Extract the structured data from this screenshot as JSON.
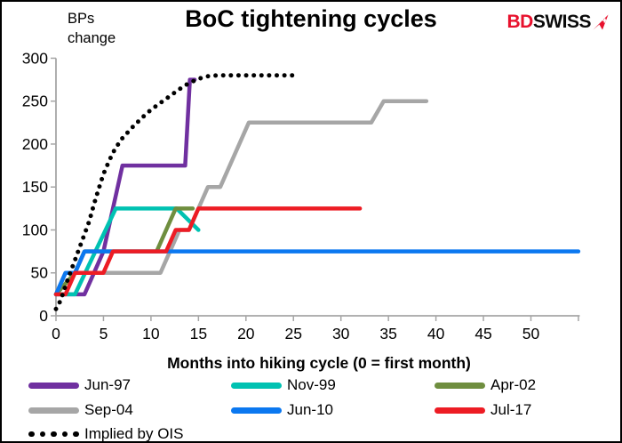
{
  "header": {
    "ylabel_note": "BPs change",
    "title": "BoC tightening cycles",
    "logo": {
      "bd": "BD",
      "swiss": "SWISS"
    }
  },
  "chart_data": {
    "type": "line",
    "title": "BoC tightening cycles",
    "xlabel": "Months into hiking cycle (0 = first month)",
    "ylabel": "BPs change",
    "xlim": [
      0,
      55
    ],
    "ylim": [
      0,
      300
    ],
    "grid": false,
    "legend_position": "bottom",
    "axis_color": "#a6a6a6",
    "x_ticks": [
      0,
      5,
      10,
      15,
      20,
      25,
      30,
      35,
      40,
      45,
      50,
      55
    ],
    "x_tick_labels": [
      "0",
      "5",
      "10",
      "15",
      "20",
      "25",
      "30",
      "35",
      "40",
      "45",
      "50",
      ""
    ],
    "y_ticks": [
      0,
      50,
      100,
      150,
      200,
      250,
      300
    ],
    "y_tick_labels": [
      "0",
      "50",
      "100",
      "150",
      "200",
      "250",
      "300"
    ],
    "series": [
      {
        "name": "Jun-97",
        "color": "#7030A0",
        "style": "solid",
        "points": [
          [
            0,
            25
          ],
          [
            3,
            25
          ],
          [
            4,
            50
          ],
          [
            5,
            75
          ],
          [
            6,
            125
          ],
          [
            7,
            175
          ],
          [
            13.6,
            175
          ],
          [
            14.1,
            275
          ],
          [
            14.6,
            275
          ]
        ]
      },
      {
        "name": "Nov-99",
        "color": "#00C2B2",
        "style": "solid",
        "points": [
          [
            0,
            25
          ],
          [
            2,
            25
          ],
          [
            6.3,
            125
          ],
          [
            12.7,
            125
          ],
          [
            15,
            100
          ]
        ]
      },
      {
        "name": "Apr-02",
        "color": "#6F8E3F",
        "style": "solid",
        "points": [
          [
            0,
            25
          ],
          [
            2,
            50
          ],
          [
            3,
            75
          ],
          [
            10.6,
            75
          ],
          [
            12.6,
            125
          ],
          [
            14.4,
            125
          ]
        ]
      },
      {
        "name": "Sep-04",
        "color": "#A6A6A6",
        "style": "solid",
        "points": [
          [
            0,
            25
          ],
          [
            1,
            50
          ],
          [
            11,
            50
          ],
          [
            12,
            75
          ],
          [
            13,
            100
          ],
          [
            14,
            100
          ],
          [
            15,
            125
          ],
          [
            16,
            150
          ],
          [
            17.3,
            150
          ],
          [
            20.3,
            225
          ],
          [
            33.2,
            225
          ],
          [
            34.5,
            250
          ],
          [
            39,
            250
          ]
        ]
      },
      {
        "name": "Jun-10",
        "color": "#0B78F0",
        "style": "solid",
        "points": [
          [
            0,
            25
          ],
          [
            1,
            50
          ],
          [
            2,
            50
          ],
          [
            3,
            75
          ],
          [
            55,
            75
          ]
        ]
      },
      {
        "name": "Jul-17",
        "color": "#ED1C24",
        "style": "solid",
        "points": [
          [
            0,
            25
          ],
          [
            1,
            25
          ],
          [
            2,
            50
          ],
          [
            5,
            50
          ],
          [
            6,
            75
          ],
          [
            11.6,
            75
          ],
          [
            12.6,
            100
          ],
          [
            14,
            100
          ],
          [
            15,
            125
          ],
          [
            32,
            125
          ]
        ]
      },
      {
        "name": "Implied by OIS",
        "color": "#000000",
        "style": "dots",
        "points": [
          [
            0,
            8
          ],
          [
            0.5,
            18
          ],
          [
            1,
            35
          ],
          [
            1.5,
            50
          ],
          [
            2,
            65
          ],
          [
            2.5,
            80
          ],
          [
            3,
            95
          ],
          [
            3.5,
            110
          ],
          [
            4,
            130
          ],
          [
            4.5,
            148
          ],
          [
            5,
            165
          ],
          [
            5.5,
            178
          ],
          [
            6,
            190
          ],
          [
            6.5,
            199
          ],
          [
            7,
            207
          ],
          [
            7.5,
            213
          ],
          [
            8,
            219
          ],
          [
            9,
            230
          ],
          [
            10,
            240
          ],
          [
            11,
            248
          ],
          [
            12,
            256
          ],
          [
            13,
            264
          ],
          [
            14,
            271
          ],
          [
            15,
            276
          ],
          [
            16,
            279
          ],
          [
            17,
            280
          ],
          [
            25.5,
            280
          ]
        ]
      }
    ]
  },
  "legend": {
    "items": [
      {
        "label": "Jun-97",
        "color": "#7030A0",
        "style": "solid",
        "row": 0,
        "col": 0
      },
      {
        "label": "Nov-99",
        "color": "#00C2B2",
        "style": "solid",
        "row": 0,
        "col": 1
      },
      {
        "label": "Apr-02",
        "color": "#6F8E3F",
        "style": "solid",
        "row": 0,
        "col": 2
      },
      {
        "label": "Sep-04",
        "color": "#A6A6A6",
        "style": "solid",
        "row": 1,
        "col": 0
      },
      {
        "label": "Jun-10",
        "color": "#0B78F0",
        "style": "solid",
        "row": 1,
        "col": 1
      },
      {
        "label": "Jul-17",
        "color": "#ED1C24",
        "style": "solid",
        "row": 1,
        "col": 2
      },
      {
        "label": "Implied by OIS",
        "color": "#000000",
        "style": "dots",
        "row": 2,
        "col": 0
      }
    ]
  }
}
